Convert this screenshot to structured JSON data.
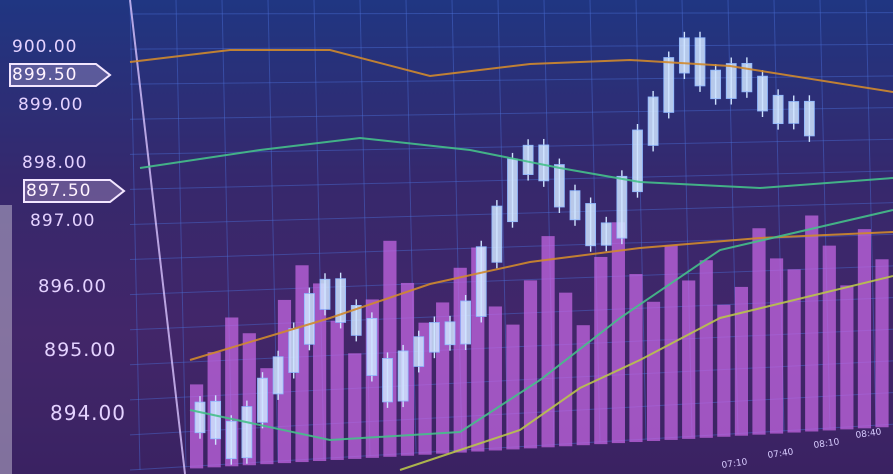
{
  "chart_data": {
    "type": "candlestick",
    "y_ticks": [
      "900.00",
      "899.50",
      "899.00",
      "898.00",
      "897.50",
      "897.00",
      "896.00",
      "895.00",
      "894.00"
    ],
    "highlighted_ticks": [
      "899.50",
      "897.50"
    ],
    "x_ticks": [
      "07:10",
      "07:40",
      "08:10",
      "08:40"
    ],
    "ylim": [
      893.5,
      900.2
    ],
    "series": [
      {
        "kind": "candles",
        "values": [
          894.3,
          894.0,
          893.7,
          894.2,
          894.6,
          894.9,
          895.3,
          895.8,
          896.0,
          895.6,
          895.4,
          894.8,
          894.4,
          894.9,
          895.1,
          895.3,
          895.2,
          895.6,
          896.4,
          897.0,
          897.7,
          897.9,
          897.6,
          897.2,
          897.0,
          896.6,
          896.7,
          897.4,
          898.1,
          898.6,
          899.2,
          899.5,
          899.0,
          898.8,
          899.1,
          898.9,
          898.6,
          898.4,
          898.5,
          898.2
        ]
      },
      {
        "kind": "volume",
        "values": [
          35,
          48,
          62,
          55,
          40,
          68,
          82,
          74,
          58,
          44,
          66,
          90,
          72,
          55,
          63,
          77,
          85,
          60,
          52,
          70,
          88,
          64,
          50,
          78,
          92,
          70,
          58,
          81,
          66,
          74,
          55,
          62,
          86,
          73,
          68,
          90,
          77,
          60,
          83,
          70
        ]
      }
    ]
  },
  "colors": {
    "background_top": "#1c3f8f",
    "background_bottom": "#3f2565",
    "grid": "#4c6fd6",
    "candle": "#cfe4ff",
    "volume": "#c166e0",
    "ma_orange": "#d08a2c",
    "ma_green": "#45c08a",
    "ma_yellow": "#b9c44a"
  }
}
